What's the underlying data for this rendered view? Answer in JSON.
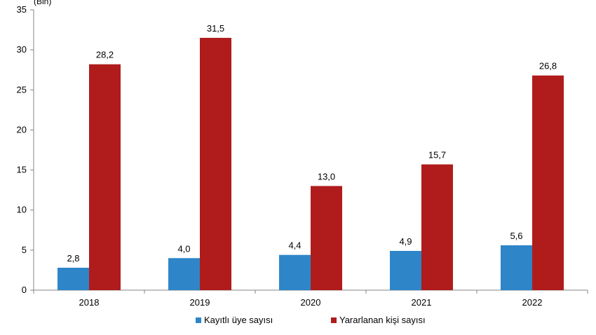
{
  "chart_data": {
    "type": "bar",
    "categories": [
      "2018",
      "2019",
      "2020",
      "2021",
      "2022"
    ],
    "series": [
      {
        "name": "Kayıtlı üye sayısı",
        "values": [
          2.8,
          4.0,
          4.4,
          4.9,
          5.6
        ],
        "labels": [
          "2,8",
          "4,0",
          "4,4",
          "4,9",
          "5,6"
        ],
        "color": "#2E86C8"
      },
      {
        "name": "Yararlanan kişi sayısı",
        "values": [
          28.2,
          31.5,
          13.0,
          15.7,
          26.8
        ],
        "labels": [
          "28,2",
          "31,5",
          "13,0",
          "15,7",
          "26,8"
        ],
        "color": "#B01C1C"
      }
    ],
    "unit_label": "(Bin)",
    "ylim": [
      0,
      35
    ],
    "yticks": [
      0,
      5,
      10,
      15,
      20,
      25,
      30,
      35
    ],
    "grid": false,
    "legend_position": "bottom"
  }
}
